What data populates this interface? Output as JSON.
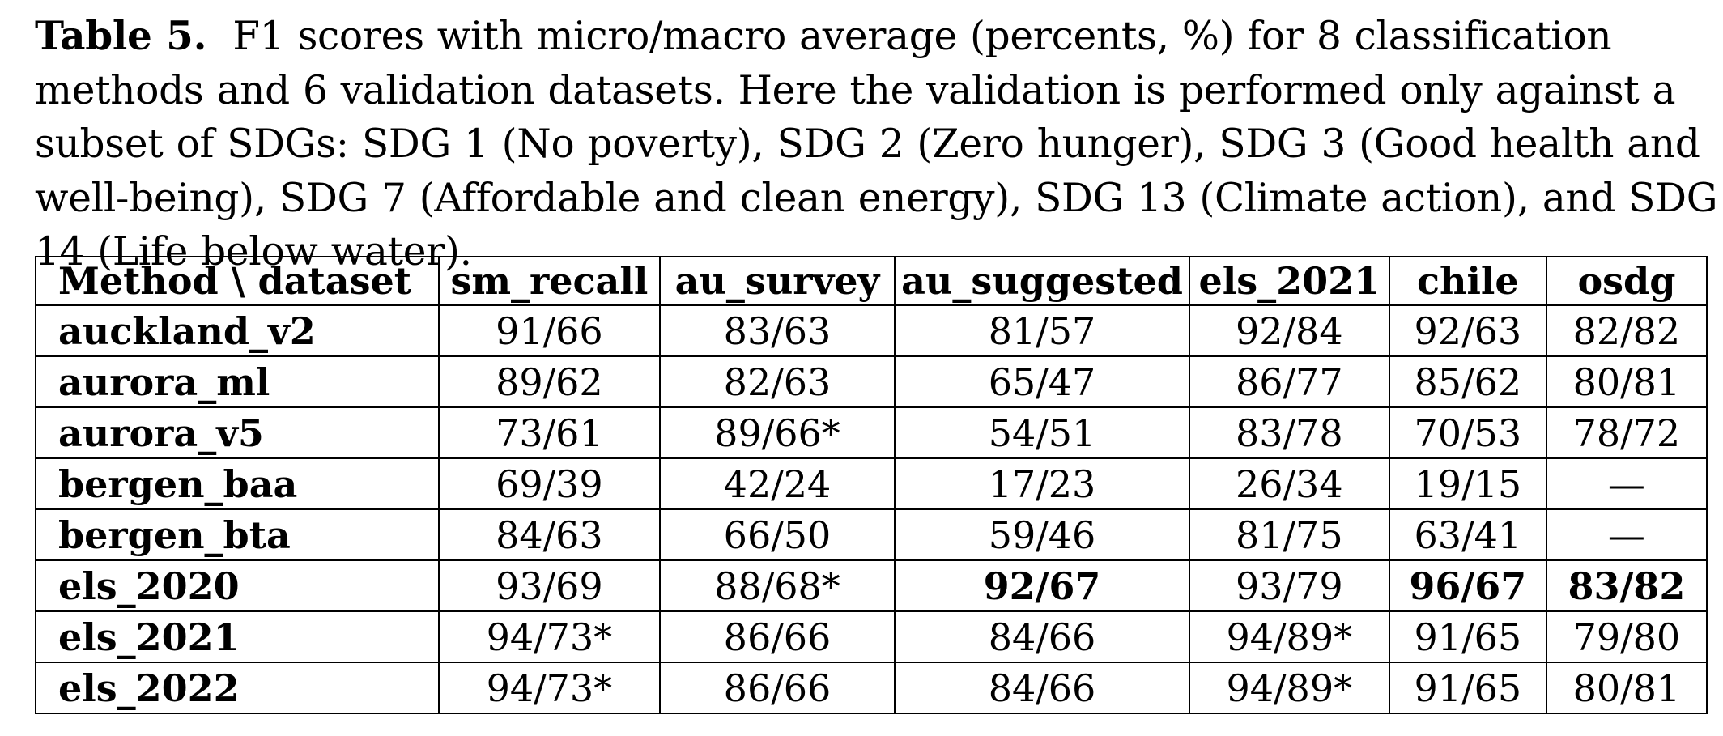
{
  "caption": {
    "label": "Table 5.",
    "text": "F1 scores with micro/macro average (percents, %) for 8 classification methods and 6 validation datasets. Here the validation is performed only against a subset of SDGs: SDG 1 (No poverty), SDG 2 (Zero hunger), SDG 3 (Good health and well-being), SDG 7 (Affordable and clean energy), SDG 13 (Climate action), and SDG 14 (Life below water)."
  },
  "table": {
    "corner_header": "Method \\  dataset",
    "columns": [
      "sm_recall",
      "au_survey",
      "au_suggested",
      "els_2021",
      "chile",
      "osdg"
    ],
    "rows": [
      {
        "method": "auckland_v2",
        "cells": [
          "91/66",
          "83/63",
          "81/57",
          "92/84",
          "92/63",
          "82/82"
        ],
        "bold": [
          false,
          false,
          false,
          false,
          false,
          false
        ]
      },
      {
        "method": "aurora_ml",
        "cells": [
          "89/62",
          "82/63",
          "65/47",
          "86/77",
          "85/62",
          "80/81"
        ],
        "bold": [
          false,
          false,
          false,
          false,
          false,
          false
        ]
      },
      {
        "method": "aurora_v5",
        "cells": [
          "73/61",
          "89/66*",
          "54/51",
          "83/78",
          "70/53",
          "78/72"
        ],
        "bold": [
          false,
          false,
          false,
          false,
          false,
          false
        ]
      },
      {
        "method": "bergen_baa",
        "cells": [
          "69/39",
          "42/24",
          "17/23",
          "26/34",
          "19/15",
          "—"
        ],
        "bold": [
          false,
          false,
          false,
          false,
          false,
          false
        ]
      },
      {
        "method": "bergen_bta",
        "cells": [
          "84/63",
          "66/50",
          "59/46",
          "81/75",
          "63/41",
          "—"
        ],
        "bold": [
          false,
          false,
          false,
          false,
          false,
          false
        ]
      },
      {
        "method": "els_2020",
        "cells": [
          "93/69",
          "88/68*",
          "92/67",
          "93/79",
          "96/67",
          "83/82"
        ],
        "bold": [
          false,
          false,
          true,
          false,
          true,
          true
        ]
      },
      {
        "method": "els_2021",
        "cells": [
          "94/73*",
          "86/66",
          "84/66",
          "94/89*",
          "91/65",
          "79/80"
        ],
        "bold": [
          false,
          false,
          false,
          false,
          false,
          false
        ]
      },
      {
        "method": "els_2022",
        "cells": [
          "94/73*",
          "86/66",
          "84/66",
          "94/89*",
          "91/65",
          "80/81"
        ],
        "bold": [
          false,
          false,
          false,
          false,
          false,
          false
        ]
      }
    ]
  }
}
